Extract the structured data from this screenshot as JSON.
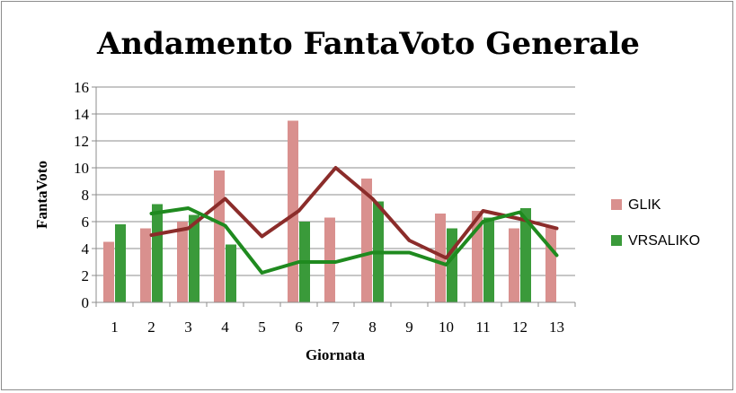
{
  "chart_data": {
    "type": "bar",
    "title": "Andamento FantaVoto Generale",
    "xlabel": "Giornata",
    "ylabel": "FantaVoto",
    "ylim": [
      0,
      16
    ],
    "yticks": [
      "0",
      "2",
      "4",
      "6",
      "8",
      "10",
      "12",
      "14",
      "16"
    ],
    "categories": [
      "1",
      "2",
      "3",
      "4",
      "5",
      "6",
      "7",
      "8",
      "9",
      "10",
      "11",
      "12",
      "13"
    ],
    "grid": true,
    "legend_position": "right",
    "series": [
      {
        "name": "GLIK",
        "type": "bar",
        "color": "#d9908e",
        "values": [
          4.5,
          5.5,
          6.0,
          9.8,
          null,
          13.5,
          6.3,
          9.2,
          null,
          6.6,
          6.8,
          5.5,
          5.6
        ]
      },
      {
        "name": "VRSALIKO",
        "type": "bar",
        "color": "#3a9a3a",
        "values": [
          5.8,
          7.3,
          6.5,
          4.3,
          null,
          6.0,
          null,
          7.5,
          null,
          5.5,
          6.3,
          7.0,
          null
        ]
      }
    ],
    "lines": [
      {
        "color": "#8b2c2a",
        "x": [
          2,
          3,
          4,
          5,
          6,
          7,
          8,
          9,
          10,
          11,
          12,
          13
        ],
        "values": [
          5.0,
          5.5,
          7.7,
          4.9,
          6.8,
          10.0,
          7.7,
          4.6,
          3.3,
          6.8,
          6.2,
          5.5
        ]
      },
      {
        "color": "#1f8a1f",
        "x": [
          2,
          3,
          4,
          5,
          6,
          7,
          8,
          9,
          10,
          11,
          12,
          13
        ],
        "values": [
          6.6,
          7.0,
          5.7,
          2.2,
          3.0,
          3.0,
          3.7,
          3.7,
          2.8,
          6.0,
          6.7,
          3.5
        ]
      }
    ]
  }
}
